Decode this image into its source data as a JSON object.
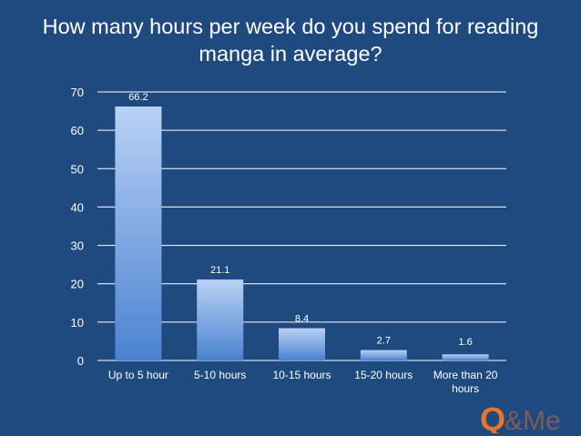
{
  "slide": {
    "title_line1": "How many hours per week do you spend for reading",
    "title_line2": "manga in average?"
  },
  "chart_data": {
    "type": "bar",
    "title": "How many hours per week do you spend for reading manga in average?",
    "categories": [
      "Up to 5 hour",
      "5-10 hours",
      "10-15 hours",
      "15-20 hours",
      "More than 20 hours"
    ],
    "category_label_lines": [
      [
        "Up to 5 hour"
      ],
      [
        "5-10 hours"
      ],
      [
        "10-15 hours"
      ],
      [
        "15-20 hours"
      ],
      [
        "More than 20",
        "hours"
      ]
    ],
    "values": [
      66.2,
      21.1,
      8.4,
      2.7,
      1.6
    ],
    "value_labels": [
      "66.2",
      "21.1",
      "8.4",
      "2.7",
      "1.6"
    ],
    "ylim": [
      0,
      70
    ],
    "yticks": [
      0,
      10,
      20,
      30,
      40,
      50,
      60,
      70
    ],
    "xlabel": "",
    "ylabel": "",
    "grid": true,
    "colors": {
      "bar_top": "#b9d1f5",
      "bar_bottom": "#4a82d0",
      "grid": "#ffffff",
      "text": "#ffffff",
      "background": "#1f4a7f"
    }
  },
  "logo": {
    "text_q": "Q",
    "text_rest": "&Me",
    "color": "#e8732a"
  }
}
